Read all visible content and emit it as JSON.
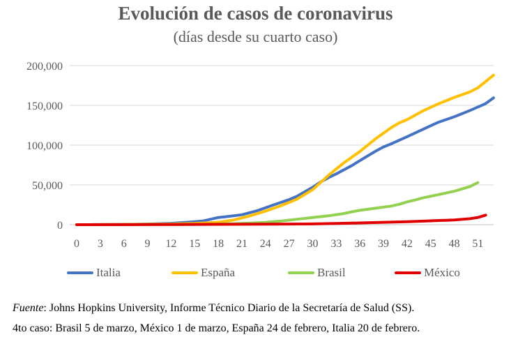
{
  "header": {
    "title": "Evolución de casos de coronavirus",
    "subtitle": "(días desde su cuarto caso)"
  },
  "footnote": {
    "source_label": "Fuente",
    "source_text": ": Johns Hopkins University, Informe Técnico Diario de la Secretaría de Salud (SS).",
    "fourth_case_text": "4to caso: Brasil 5 de marzo, México 1 de marzo, España 24 de febrero, Italia 20 de febrero."
  },
  "chart_data": {
    "type": "line",
    "title": "Evolución de casos de coronavirus",
    "subtitle": "(días desde su cuarto caso)",
    "xlabel": "",
    "ylabel": "",
    "xlim": [
      0,
      53
    ],
    "ylim": [
      0,
      200000
    ],
    "x_ticks": [
      0,
      3,
      6,
      9,
      12,
      15,
      18,
      21,
      24,
      27,
      30,
      33,
      36,
      39,
      42,
      45,
      48,
      51
    ],
    "y_ticks": [
      0,
      50000,
      100000,
      150000,
      200000
    ],
    "y_tick_labels": [
      "0",
      "50,000",
      "100,000",
      "150,000",
      "200,000"
    ],
    "grid": "horizontal",
    "legend_position": "bottom",
    "series": [
      {
        "name": "Italia",
        "color": "#4472C4",
        "x": [
          0,
          3,
          6,
          9,
          12,
          14,
          16,
          18,
          19,
          21,
          23,
          25,
          27,
          28,
          30,
          31,
          32,
          33,
          35,
          36,
          38,
          39,
          40,
          42,
          44,
          46,
          48,
          50,
          52,
          53
        ],
        "y": [
          0,
          100,
          300,
          800,
          1700,
          3000,
          4600,
          9000,
          10100,
          12500,
          17700,
          24700,
          31500,
          35700,
          47000,
          53600,
          59100,
          63900,
          74400,
          80500,
          92500,
          97700,
          101700,
          110600,
          119800,
          128900,
          135600,
          143600,
          152300,
          159500
        ]
      },
      {
        "name": "España",
        "color": "#FFC000",
        "x": [
          0,
          3,
          6,
          9,
          12,
          15,
          18,
          20,
          22,
          24,
          26,
          28,
          30,
          31,
          32,
          33,
          34,
          35,
          36,
          37,
          38,
          39,
          40,
          41,
          42,
          44,
          46,
          48,
          50,
          51,
          53
        ],
        "y": [
          0,
          100,
          200,
          500,
          800,
          1500,
          3000,
          6000,
          11000,
          17000,
          24000,
          32000,
          44000,
          53000,
          62000,
          70000,
          78000,
          85000,
          92000,
          100000,
          108000,
          115000,
          122000,
          128000,
          132000,
          143000,
          152000,
          160000,
          167000,
          172000,
          188000
        ]
      },
      {
        "name": "Brasil",
        "color": "#92D050",
        "x": [
          0,
          6,
          12,
          18,
          21,
          24,
          26,
          28,
          30,
          32,
          34,
          35,
          36,
          38,
          40,
          41,
          42,
          43,
          44,
          46,
          48,
          50,
          51
        ],
        "y": [
          0,
          100,
          200,
          600,
          1500,
          2900,
          4600,
          6800,
          9000,
          11100,
          14000,
          16200,
          18100,
          20700,
          23400,
          25600,
          28700,
          31000,
          33700,
          37800,
          42000,
          48000,
          53000
        ]
      },
      {
        "name": "México",
        "color": "#E00000",
        "x": [
          0,
          12,
          18,
          21,
          24,
          27,
          30,
          33,
          36,
          39,
          42,
          45,
          48,
          50,
          51,
          52
        ],
        "y": [
          0,
          200,
          400,
          500,
          600,
          800,
          1000,
          1500,
          2200,
          3000,
          3800,
          4800,
          6000,
          7500,
          9000,
          12000
        ]
      }
    ]
  }
}
